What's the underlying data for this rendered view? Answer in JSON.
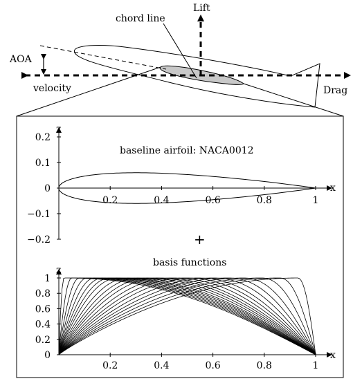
{
  "top": {
    "lift": "Lift",
    "drag": "Drag",
    "velocity": "velocity",
    "aoa": "AOA",
    "chord_line": "chord line"
  },
  "panel1": {
    "title": "baseline airfoil: NACA0012",
    "x_axis_label": "x",
    "y_axis_label": "z",
    "x_ticks": [
      "0.2",
      "0.4",
      "0.6",
      "0.8",
      "1"
    ],
    "y_ticks": [
      "0.2",
      "0.1",
      "0",
      "−0.1",
      "−0.2"
    ]
  },
  "plus": "+",
  "panel2": {
    "title": "basis functions",
    "x_axis_label": "x",
    "y_axis_label": "z",
    "x_ticks": [
      "0.2",
      "0.4",
      "0.6",
      "0.8",
      "1"
    ],
    "y_ticks": [
      "1",
      "0.8",
      "0.6",
      "0.4",
      "0.2",
      "0"
    ]
  },
  "chart_data": [
    {
      "type": "line",
      "title": "baseline airfoil: NACA0012",
      "xlabel": "x",
      "ylabel": "z",
      "xlim": [
        0,
        1
      ],
      "ylim": [
        -0.2,
        0.2
      ],
      "x_ticks": [
        0.2,
        0.4,
        0.6,
        0.8,
        1
      ],
      "y_ticks": [
        -0.2,
        -0.1,
        0,
        0.1,
        0.2
      ],
      "series": [
        {
          "x": [
            0,
            0.0125,
            0.025,
            0.05,
            0.1,
            0.15,
            0.2,
            0.3,
            0.4,
            0.5,
            0.6,
            0.7,
            0.8,
            0.9,
            0.95,
            1.0
          ],
          "y": [
            0,
            0.0189,
            0.0262,
            0.0356,
            0.0468,
            0.0534,
            0.0574,
            0.06,
            0.058,
            0.0529,
            0.0457,
            0.0368,
            0.0265,
            0.0145,
            0.0081,
            0.0013
          ]
        },
        {
          "x": [
            0,
            0.0125,
            0.025,
            0.05,
            0.1,
            0.15,
            0.2,
            0.3,
            0.4,
            0.5,
            0.6,
            0.7,
            0.8,
            0.9,
            0.95,
            1.0
          ],
          "y": [
            0,
            -0.0189,
            -0.0262,
            -0.0356,
            -0.0468,
            -0.0534,
            -0.0574,
            -0.06,
            -0.058,
            -0.0529,
            -0.0457,
            -0.0368,
            -0.0265,
            -0.0145,
            -0.0081,
            -0.0013
          ]
        }
      ]
    },
    {
      "type": "line",
      "title": "basis functions",
      "xlabel": "x",
      "ylabel": "z",
      "xlim": [
        0,
        1
      ],
      "ylim": [
        0,
        1
      ],
      "x_ticks": [
        0.2,
        0.4,
        0.6,
        0.8,
        1
      ],
      "y_ticks": [
        0,
        0.2,
        0.4,
        0.6,
        0.8,
        1
      ],
      "peaks": [
        0.02,
        0.05,
        0.08,
        0.11,
        0.14,
        0.17,
        0.2,
        0.23,
        0.27,
        0.31,
        0.35,
        0.39,
        0.44,
        0.49,
        0.54,
        0.6,
        0.66,
        0.72,
        0.79,
        0.86,
        0.93
      ]
    }
  ]
}
